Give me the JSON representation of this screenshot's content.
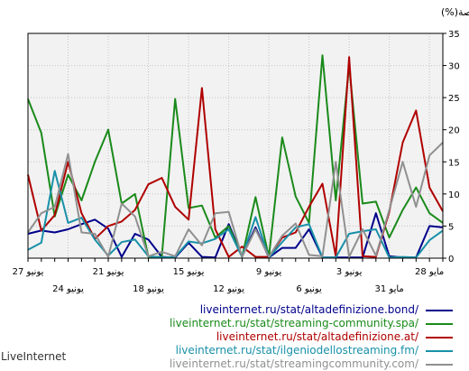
{
  "chart_data": {
    "type": "line",
    "ylabel": "الحصة(%)",
    "ylim": [
      0,
      35
    ],
    "yticks": [
      0,
      5,
      10,
      15,
      20,
      25,
      30,
      35
    ],
    "grid": true,
    "legend_position": "bottom-right",
    "xlabels_upper": [
      "27 يونيو",
      "21 يونيو",
      "15 يونيو",
      "9 يونيو",
      "3 يونيو",
      "28 مايو"
    ],
    "xlabels_lower": [
      "24 يونيو",
      "18 يونيو",
      "12 يونيو",
      "6 يونيو",
      "31 مايو"
    ],
    "series": [
      {
        "name": "liveinternet.ru/stat/altadefinizione.bond/",
        "color": "#00008b",
        "values": [
          3.8,
          4.3,
          4.0,
          4.5,
          5.3,
          6.0,
          4.6,
          0.2,
          3.8,
          2.9,
          0.2,
          0.1,
          2.4,
          0.2,
          0.1,
          5.3,
          0.3,
          4.8,
          0.1,
          1.6,
          1.6,
          4.5,
          0.1,
          0.1,
          0.1,
          0.1,
          7.0,
          0.3,
          0.1,
          0.1,
          5.0,
          4.8
        ]
      },
      {
        "name": "liveinternet.ru/stat/streaming-community.spa/",
        "color": "#1a8a1a",
        "values": [
          24.8,
          19.5,
          6.5,
          13.0,
          9.0,
          15.0,
          20.0,
          8.5,
          10.0,
          0.2,
          0.2,
          24.8,
          7.8,
          8.2,
          3.2,
          5.0,
          0.2,
          9.5,
          0.2,
          18.8,
          9.6,
          5.5,
          31.6,
          9.0,
          30.0,
          8.5,
          8.8,
          3.2,
          7.5,
          11.0,
          7.0,
          5.5
        ]
      },
      {
        "name": "liveinternet.ru/stat/altadefinizione.at/",
        "color": "#b00000",
        "values": [
          13.0,
          4.3,
          6.7,
          15.0,
          7.0,
          3.0,
          5.0,
          5.7,
          7.5,
          11.5,
          12.5,
          8.0,
          6.0,
          26.5,
          4.5,
          0.2,
          1.8,
          0.2,
          0.2,
          3.2,
          4.0,
          8.0,
          11.6,
          0.3,
          31.3,
          0.3,
          0.2,
          7.2,
          18.0,
          23.0,
          11.0,
          7.3
        ]
      },
      {
        "name": "liveinternet.ru/stat/ilgeniodellostreaming.fm/",
        "color": "#1890a8",
        "values": [
          1.3,
          2.4,
          13.6,
          5.5,
          6.3,
          2.9,
          0.4,
          2.5,
          2.9,
          0.3,
          0.1,
          0.2,
          2.6,
          2.3,
          3.0,
          4.5,
          0.2,
          6.4,
          0.1,
          2.5,
          4.8,
          5.3,
          0.1,
          0.1,
          3.8,
          4.2,
          4.5,
          0.1,
          0.2,
          0.1,
          2.8,
          4.3
        ]
      },
      {
        "name": "liveinternet.ru/stat/streamingcommunity.com/",
        "color": "#909090",
        "values": [
          4.0,
          7.0,
          8.0,
          16.2,
          4.0,
          3.8,
          0.2,
          8.5,
          6.5,
          0.3,
          1.0,
          0.3,
          4.5,
          2.0,
          7.0,
          7.2,
          0.2,
          4.5,
          0.2,
          3.5,
          5.4,
          0.5,
          0.3,
          15.0,
          0.2,
          4.5,
          0.4,
          7.5,
          15.0,
          8.0,
          16.0,
          18.0
        ]
      }
    ]
  },
  "footer": {
    "brand": "LiveInternet"
  }
}
